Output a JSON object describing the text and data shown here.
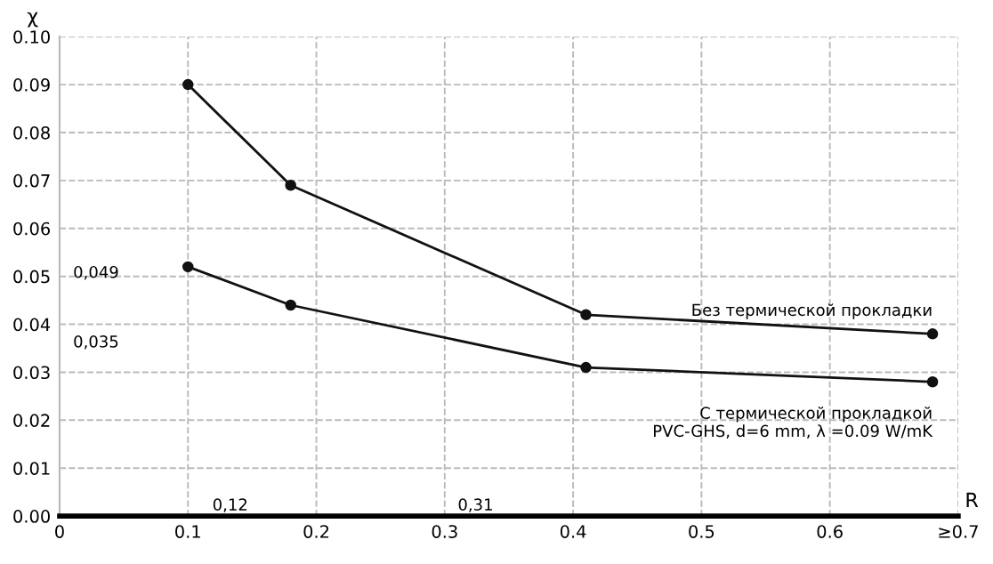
{
  "chart_data": {
    "type": "line",
    "xlabel": "R",
    "ylabel": "χ",
    "xlim": [
      0,
      0.7
    ],
    "ylim": [
      0,
      0.1
    ],
    "xticks": [
      0,
      0.1,
      0.2,
      0.3,
      0.4,
      0.5,
      0.6,
      {
        "value": 0.7,
        "label": "≥0.7"
      }
    ],
    "yticks": [
      {
        "value": 0,
        "label": "0.00"
      },
      {
        "value": 0.01,
        "label": "0.01"
      },
      {
        "value": 0.02,
        "label": "0.02"
      },
      {
        "value": 0.03,
        "label": "0.03"
      },
      {
        "value": 0.04,
        "label": "0.04"
      },
      {
        "value": 0.05,
        "label": "0.05"
      },
      {
        "value": 0.06,
        "label": "0.06"
      },
      {
        "value": 0.07,
        "label": "0.07"
      },
      {
        "value": 0.08,
        "label": "0.08"
      },
      {
        "value": 0.09,
        "label": "0.09"
      },
      {
        "value": 0.1,
        "label": "0.10"
      }
    ],
    "grid": true,
    "marker": "circle",
    "line_style": "solid",
    "legend": false,
    "x": [
      0.1,
      0.18,
      0.41,
      0.68
    ],
    "series": [
      {
        "name": "Без термической прокладки",
        "color": "#111111",
        "values": [
          0.09,
          0.069,
          0.042,
          0.038
        ]
      },
      {
        "name": "С термической прокладкой\nPVC-GHS, d=6 mm, λ =0.09 W/mK",
        "color": "#111111",
        "values": [
          0.052,
          0.044,
          0.031,
          0.028
        ]
      }
    ],
    "annotations": [
      "0,049",
      "0,035",
      "0,12",
      "0,31"
    ]
  }
}
